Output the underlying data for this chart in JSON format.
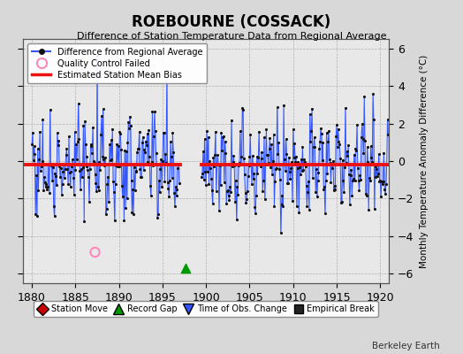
{
  "title": "ROEBOURNE (COSSACK)",
  "subtitle": "Difference of Station Temperature Data from Regional Average",
  "ylabel": "Monthly Temperature Anomaly Difference (°C)",
  "xlim": [
    1879.0,
    1921.0
  ],
  "ylim": [
    -6.5,
    6.5
  ],
  "yticks": [
    -6,
    -4,
    -2,
    0,
    2,
    4,
    6
  ],
  "xticks": [
    1880,
    1885,
    1890,
    1895,
    1900,
    1905,
    1910,
    1915,
    1920
  ],
  "mean_bias": -0.2,
  "line_color": "#3355ff",
  "line_color_light": "#aabbff",
  "dot_color": "#111111",
  "bias_color": "#ee1111",
  "background_color": "#d8d8d8",
  "plot_bg_color": "#e8e8e8",
  "watermark": "Berkeley Earth",
  "gap_start": 1897.0,
  "gap_end": 1899.5,
  "qc_fail_x": 1887.25,
  "qc_fail_y": -4.85,
  "record_gap_x": 1897.6,
  "record_gap_y": -5.7,
  "seed": 77
}
